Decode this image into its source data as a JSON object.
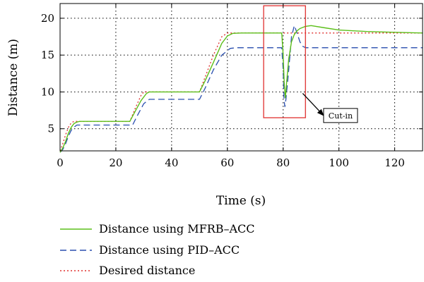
{
  "chart_data": {
    "type": "line",
    "xlabel": "Time (s)",
    "ylabel": "Distance (m)",
    "xlim": [
      0,
      130
    ],
    "ylim": [
      2,
      22
    ],
    "xticks": [
      0,
      20,
      40,
      60,
      80,
      100,
      120
    ],
    "yticks": [
      5,
      10,
      15,
      20
    ],
    "grid": true,
    "grid_style": "dotted",
    "legend_position": "below",
    "series": [
      {
        "name": "Distance using MFRB–ACC",
        "color": "#5cbf1a",
        "style": "solid",
        "x": [
          0,
          1,
          2,
          3,
          4,
          5,
          6,
          7,
          10,
          25,
          27,
          29,
          31,
          32,
          35,
          50,
          52,
          55,
          58,
          60,
          62,
          65,
          70,
          79.5,
          80,
          80.4,
          80.8,
          81.3,
          82,
          83,
          84,
          85,
          86,
          88,
          90,
          95,
          100,
          110,
          120,
          130
        ],
        "y": [
          1.8,
          2.4,
          3.3,
          4.4,
          5.2,
          5.7,
          5.9,
          6.0,
          6.0,
          6.0,
          7.4,
          8.8,
          9.8,
          10.0,
          10.0,
          10.0,
          11.5,
          14.0,
          16.6,
          17.6,
          17.95,
          18.0,
          18.0,
          18.0,
          15.0,
          11.0,
          9.2,
          11.5,
          14.5,
          16.8,
          17.8,
          18.3,
          18.6,
          18.9,
          19.0,
          18.7,
          18.4,
          18.2,
          18.1,
          18.0
        ]
      },
      {
        "name": "Distance using PID–ACC",
        "color": "#2a4faf",
        "style": "dashed",
        "x": [
          0,
          1,
          2,
          3,
          4,
          5,
          6,
          8,
          10,
          26,
          28,
          30,
          32,
          34,
          50,
          52,
          55,
          58,
          61,
          63,
          65,
          79.5,
          80,
          80.3,
          80.6,
          81,
          82,
          83,
          84,
          85,
          86,
          87,
          88,
          90,
          95,
          130
        ],
        "y": [
          1.8,
          2.2,
          3.0,
          4.0,
          4.8,
          5.2,
          5.5,
          5.5,
          5.5,
          5.5,
          7.0,
          8.4,
          9.0,
          9.0,
          9.0,
          10.5,
          13.0,
          15.0,
          15.9,
          16.0,
          16.0,
          16.0,
          13.0,
          9.0,
          8.0,
          9.0,
          13.0,
          17.5,
          19.0,
          18.0,
          16.8,
          16.2,
          16.0,
          16.0,
          16.0,
          16.0
        ]
      },
      {
        "name": "Desired distance",
        "color": "#e0302f",
        "style": "dotted",
        "x": [
          0,
          1,
          2,
          3,
          4,
          5,
          6,
          10,
          25,
          27,
          29,
          30,
          35,
          50,
          52,
          55,
          58,
          60,
          65,
          80,
          130
        ],
        "y": [
          2.0,
          3.0,
          4.2,
          5.2,
          5.8,
          6.0,
          6.0,
          6.0,
          6.0,
          7.8,
          9.5,
          10.0,
          10.0,
          10.0,
          12.0,
          15.0,
          17.5,
          18.0,
          18.0,
          18.0,
          18.0
        ]
      }
    ],
    "annotation": {
      "label": "Cut-in",
      "box_x": [
        73,
        88
      ],
      "box_y": [
        6.5,
        21.7
      ],
      "box_color": "#e0302f",
      "arrow_from": [
        87,
        9.8
      ],
      "arrow_to": [
        94.5,
        6.8
      ]
    }
  }
}
